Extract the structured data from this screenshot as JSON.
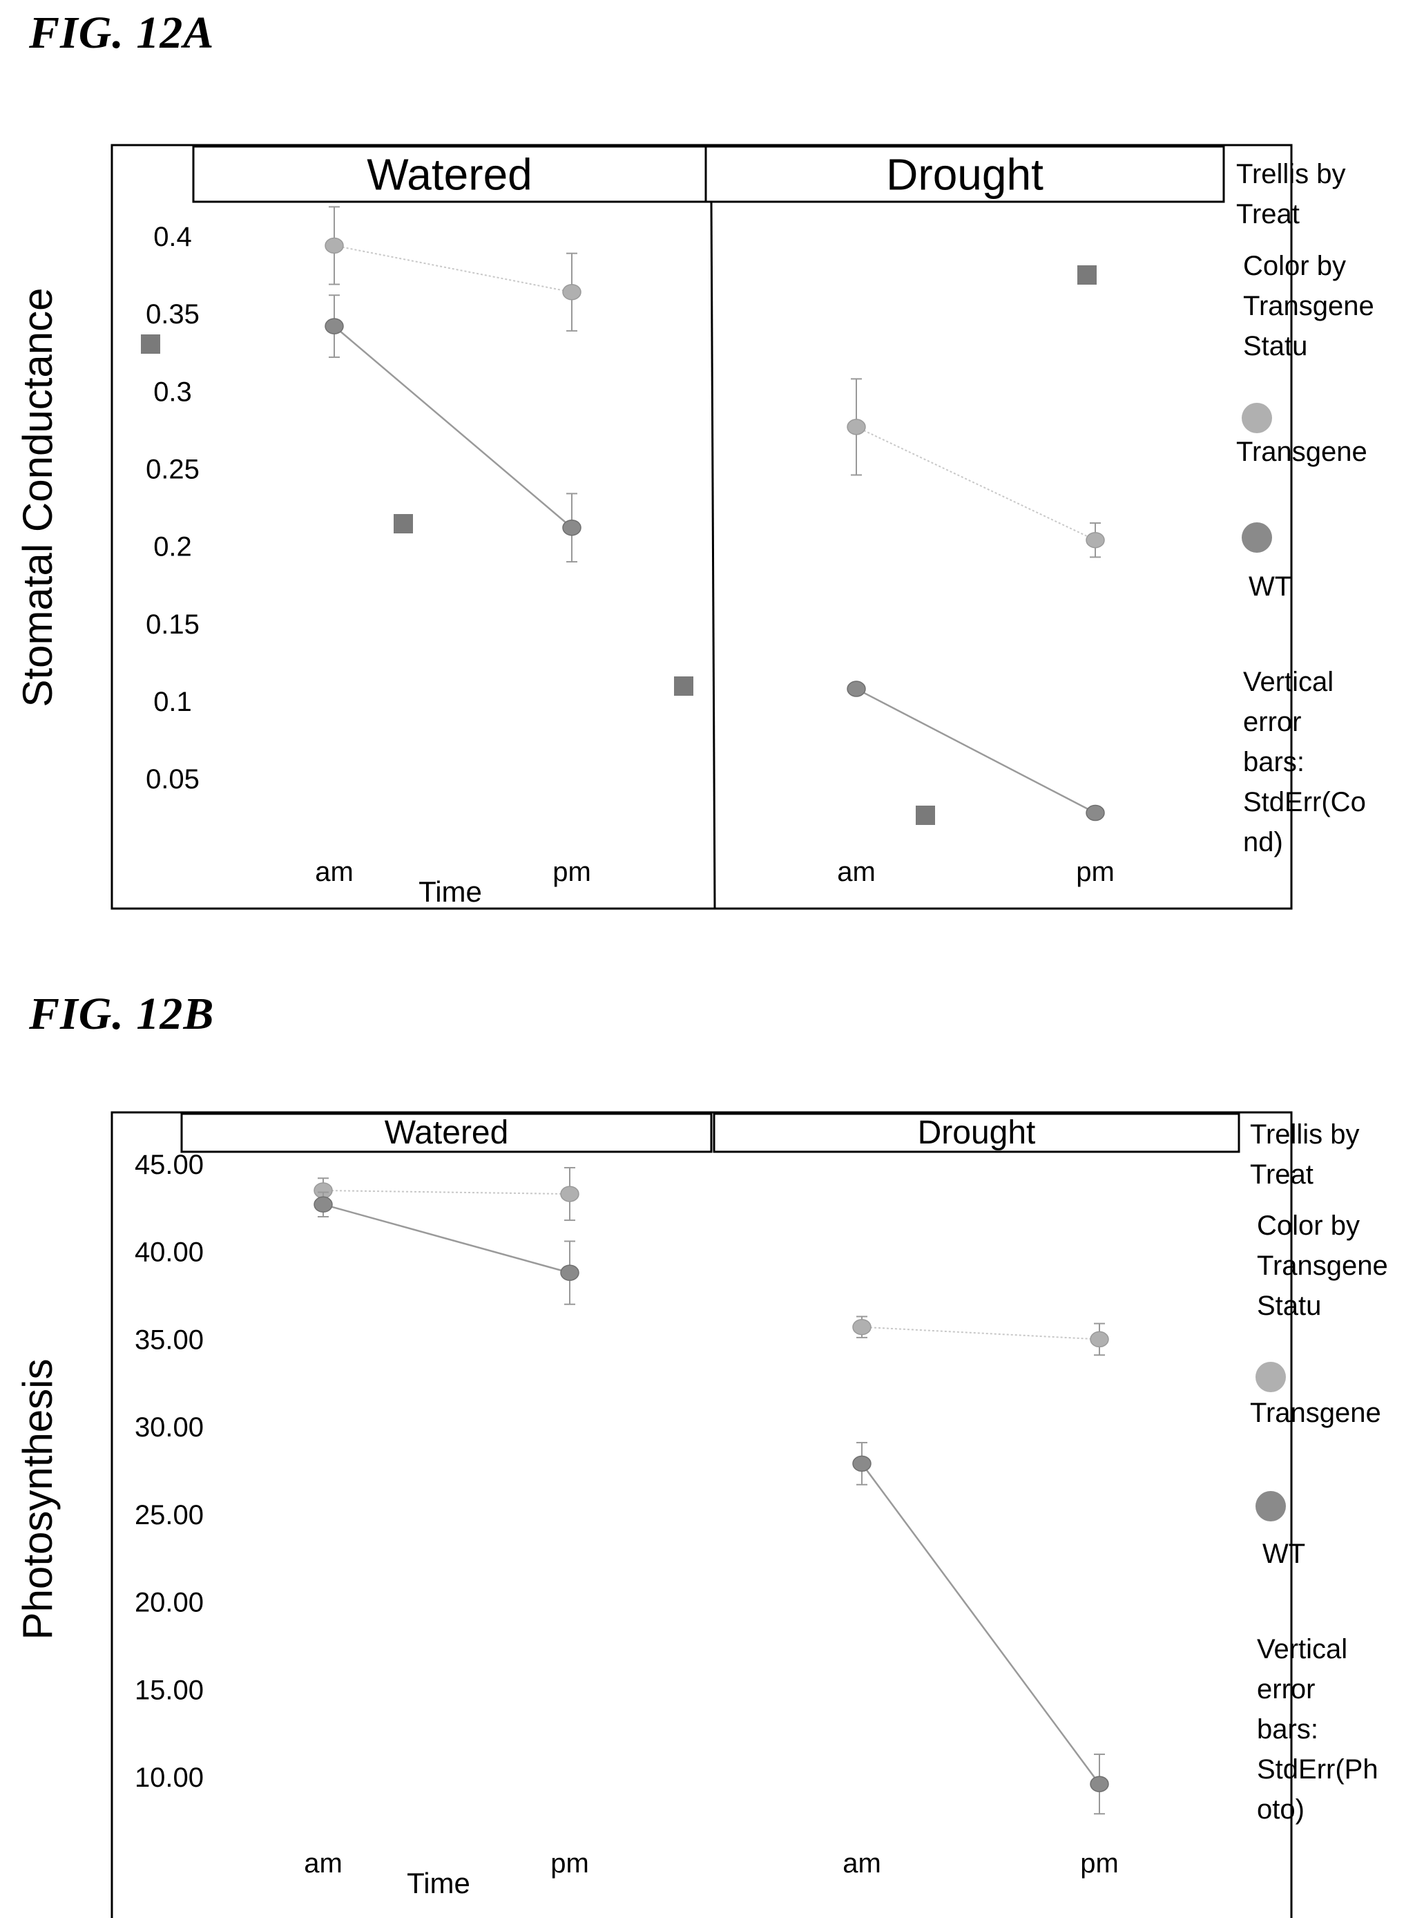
{
  "figures": {
    "a": {
      "label": "FIG. 12A",
      "panel_titles": [
        "Watered",
        "Drought"
      ],
      "legend": {
        "trellis": "Trellis by Treat",
        "color_by": "Color by Transgene Statu",
        "transgene": "Transgene",
        "wt": "WT",
        "errbars": "Vertical error bars: StdErr(Cond)"
      }
    },
    "b": {
      "label": "FIG. 12B",
      "panel_titles": [
        "Watered",
        "Drought"
      ],
      "legend": {
        "trellis": "Trellis by Treat",
        "color_by": "Color by Transgene Statu",
        "transgene": "Transgene",
        "wt": "WT",
        "errbars": "Vertical error bars: StdErr(Photo)"
      }
    }
  },
  "colors": {
    "transgene": "#b0b0b0",
    "wt": "#8a8a8a",
    "square": "#7a7a7a",
    "frame": "#000000"
  },
  "chart_data": [
    {
      "type": "line",
      "title": "FIG. 12A",
      "ylabel": "Stomatal Conductance",
      "xlabel": "Time",
      "categories": [
        "am",
        "pm"
      ],
      "panels": [
        "Watered",
        "Drought"
      ],
      "yticks": [
        "0.4",
        "0.35",
        "0.3",
        "0.25",
        "0.2",
        "0.15",
        "0.1",
        "0.05"
      ],
      "ylim": [
        0,
        0.42
      ],
      "series": [
        {
          "name": "Transgene",
          "panel": "Watered",
          "values": [
            0.394,
            0.364
          ],
          "err": [
            0.025,
            0.025
          ]
        },
        {
          "name": "WT",
          "panel": "Watered",
          "values": [
            0.342,
            0.212
          ],
          "err": [
            0.02,
            0.022
          ]
        },
        {
          "name": "Transgene",
          "panel": "Drought",
          "values": [
            0.277,
            0.204
          ],
          "err": [
            0.031,
            0.011
          ]
        },
        {
          "name": "WT",
          "panel": "Drought",
          "values": [
            0.108,
            0.028
          ],
          "err": [
            0.003,
            0.004
          ]
        }
      ]
    },
    {
      "type": "line",
      "title": "FIG. 12B",
      "ylabel": "Photosynthesis",
      "xlabel": "Time",
      "categories": [
        "am",
        "pm"
      ],
      "panels": [
        "Watered",
        "Drought"
      ],
      "yticks": [
        "45.00",
        "40.00",
        "35.00",
        "30.00",
        "25.00",
        "20.00",
        "15.00",
        "10.00"
      ],
      "ylim": [
        5,
        46
      ],
      "series": [
        {
          "name": "Transgene",
          "panel": "Watered",
          "values": [
            43.5,
            43.3
          ],
          "err": [
            0.7,
            1.5
          ]
        },
        {
          "name": "WT",
          "panel": "Watered",
          "values": [
            42.7,
            38.8
          ],
          "err": [
            0.7,
            1.8
          ]
        },
        {
          "name": "Transgene",
          "panel": "Drought",
          "values": [
            35.7,
            35.0
          ],
          "err": [
            0.6,
            0.9
          ]
        },
        {
          "name": "WT",
          "panel": "Drought",
          "values": [
            27.9,
            9.6
          ],
          "err": [
            1.2,
            1.7
          ]
        }
      ]
    }
  ]
}
